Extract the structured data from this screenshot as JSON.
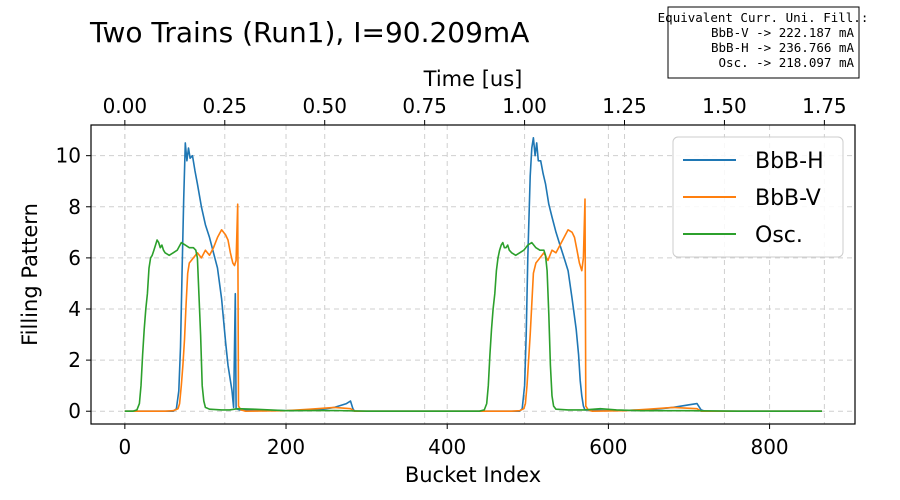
{
  "chart_data": {
    "type": "line",
    "title": "Two Trains (Run1), I=90.209mA",
    "xlabel": "Bucket Index",
    "ylabel": "Filling Pattern",
    "x2label": "Time [us]",
    "xlim": [
      -42,
      906
    ],
    "ylim": [
      -0.5,
      11.2
    ],
    "xticks": [
      0,
      200,
      400,
      600,
      800
    ],
    "yticks": [
      0,
      2,
      4,
      6,
      8,
      10
    ],
    "x2ticks": [
      "0.00",
      "0.25",
      "0.50",
      "0.75",
      "1.00",
      "1.25",
      "1.50",
      "1.75"
    ],
    "x2_bucket_per_us": 496,
    "grid": true,
    "legend_position": "top-right",
    "annotation": {
      "lines": [
        "Equivalent Curr. Uni. Fill.:",
        "BbB-V   -> 222.187 mA",
        "BbB-H   -> 236.766 mA",
        "Osc.    -> 218.097 mA"
      ]
    },
    "series": [
      {
        "name": "BbB-H",
        "color": "#1f77b4",
        "points": [
          [
            0,
            0
          ],
          [
            60,
            0
          ],
          [
            64,
            0.1
          ],
          [
            67,
            0.8
          ],
          [
            69,
            2.5
          ],
          [
            71,
            5.5
          ],
          [
            73,
            8.3
          ],
          [
            75,
            10.5
          ],
          [
            77,
            9.8
          ],
          [
            79,
            10.3
          ],
          [
            81,
            9.9
          ],
          [
            84,
            10.0
          ],
          [
            87,
            9.4
          ],
          [
            90,
            8.9
          ],
          [
            95,
            8.0
          ],
          [
            100,
            7.3
          ],
          [
            105,
            6.8
          ],
          [
            110,
            6.2
          ],
          [
            115,
            5.6
          ],
          [
            120,
            4.4
          ],
          [
            125,
            2.7
          ],
          [
            128,
            1.8
          ],
          [
            131,
            1.2
          ],
          [
            133,
            0.8
          ],
          [
            135,
            0.15
          ],
          [
            137,
            4.6
          ],
          [
            138,
            0.1
          ],
          [
            142,
            0.05
          ],
          [
            150,
            0.05
          ],
          [
            200,
            0.02
          ],
          [
            240,
            0.05
          ],
          [
            260,
            0.15
          ],
          [
            275,
            0.3
          ],
          [
            280,
            0.4
          ],
          [
            283,
            0.1
          ],
          [
            285,
            0
          ],
          [
            440,
            0
          ],
          [
            490,
            0
          ],
          [
            493,
            0.1
          ],
          [
            496,
            1.0
          ],
          [
            498,
            3.0
          ],
          [
            500,
            6.0
          ],
          [
            503,
            9.2
          ],
          [
            505,
            10.3
          ],
          [
            507,
            10.7
          ],
          [
            509,
            10.0
          ],
          [
            511,
            10.5
          ],
          [
            513,
            9.8
          ],
          [
            516,
            9.8
          ],
          [
            519,
            9.3
          ],
          [
            522,
            8.9
          ],
          [
            526,
            8.1
          ],
          [
            530,
            7.6
          ],
          [
            535,
            7.0
          ],
          [
            540,
            6.5
          ],
          [
            545,
            6.0
          ],
          [
            550,
            5.5
          ],
          [
            555,
            4.4
          ],
          [
            560,
            3.2
          ],
          [
            563,
            2.2
          ],
          [
            565,
            1.2
          ],
          [
            567,
            0.6
          ],
          [
            569,
            0.2
          ],
          [
            571,
            0.05
          ],
          [
            600,
            0.02
          ],
          [
            650,
            0.05
          ],
          [
            680,
            0.15
          ],
          [
            700,
            0.25
          ],
          [
            710,
            0.3
          ],
          [
            715,
            0.05
          ],
          [
            720,
            0
          ],
          [
            865,
            0
          ]
        ]
      },
      {
        "name": "BbB-V",
        "color": "#ff7f0e",
        "points": [
          [
            0,
            0
          ],
          [
            50,
            0
          ],
          [
            60,
            0.02
          ],
          [
            66,
            0.1
          ],
          [
            68,
            0.3
          ],
          [
            70,
            1.0
          ],
          [
            72,
            1.8
          ],
          [
            74,
            2.8
          ],
          [
            76,
            4.2
          ],
          [
            78,
            5.4
          ],
          [
            80,
            5.8
          ],
          [
            85,
            6.0
          ],
          [
            90,
            6.2
          ],
          [
            95,
            6.0
          ],
          [
            100,
            6.3
          ],
          [
            105,
            6.1
          ],
          [
            110,
            6.4
          ],
          [
            115,
            6.8
          ],
          [
            120,
            7.1
          ],
          [
            125,
            6.9
          ],
          [
            128,
            6.7
          ],
          [
            131,
            6.2
          ],
          [
            134,
            5.8
          ],
          [
            136,
            5.7
          ],
          [
            138,
            5.9
          ],
          [
            140,
            8.1
          ],
          [
            141,
            0.2
          ],
          [
            144,
            0.05
          ],
          [
            150,
            0
          ],
          [
            200,
            0.02
          ],
          [
            230,
            0.08
          ],
          [
            260,
            0.15
          ],
          [
            280,
            0.1
          ],
          [
            285,
            0
          ],
          [
            480,
            0
          ],
          [
            490,
            0.02
          ],
          [
            495,
            0.1
          ],
          [
            497,
            0.3
          ],
          [
            499,
            1.0
          ],
          [
            501,
            2.0
          ],
          [
            503,
            3.0
          ],
          [
            505,
            4.2
          ],
          [
            507,
            5.4
          ],
          [
            510,
            5.8
          ],
          [
            515,
            6.0
          ],
          [
            520,
            6.2
          ],
          [
            525,
            5.9
          ],
          [
            530,
            6.3
          ],
          [
            535,
            6.2
          ],
          [
            540,
            6.5
          ],
          [
            545,
            6.8
          ],
          [
            550,
            7.1
          ],
          [
            555,
            7.0
          ],
          [
            558,
            6.8
          ],
          [
            561,
            6.3
          ],
          [
            564,
            5.8
          ],
          [
            567,
            5.5
          ],
          [
            569,
            6.0
          ],
          [
            571,
            8.3
          ],
          [
            572,
            0.2
          ],
          [
            575,
            0.05
          ],
          [
            580,
            0
          ],
          [
            620,
            0.02
          ],
          [
            650,
            0.08
          ],
          [
            680,
            0.15
          ],
          [
            710,
            0.1
          ],
          [
            715,
            0
          ],
          [
            865,
            0
          ]
        ]
      },
      {
        "name": "Osc.",
        "color": "#2ca02c",
        "points": [
          [
            0,
            0
          ],
          [
            10,
            0
          ],
          [
            15,
            0.05
          ],
          [
            18,
            0.3
          ],
          [
            20,
            1.0
          ],
          [
            22,
            2.2
          ],
          [
            24,
            3.2
          ],
          [
            26,
            4.0
          ],
          [
            28,
            4.6
          ],
          [
            30,
            5.6
          ],
          [
            32,
            6.0
          ],
          [
            34,
            6.1
          ],
          [
            36,
            6.3
          ],
          [
            38,
            6.5
          ],
          [
            40,
            6.7
          ],
          [
            42,
            6.6
          ],
          [
            44,
            6.4
          ],
          [
            46,
            6.5
          ],
          [
            48,
            6.3
          ],
          [
            50,
            6.2
          ],
          [
            55,
            6.1
          ],
          [
            60,
            6.2
          ],
          [
            65,
            6.3
          ],
          [
            70,
            6.6
          ],
          [
            75,
            6.5
          ],
          [
            80,
            6.4
          ],
          [
            85,
            6.4
          ],
          [
            88,
            6.3
          ],
          [
            90,
            6.0
          ],
          [
            92,
            4.5
          ],
          [
            94,
            3.0
          ],
          [
            96,
            1.0
          ],
          [
            98,
            0.4
          ],
          [
            100,
            0.15
          ],
          [
            105,
            0.08
          ],
          [
            120,
            0.05
          ],
          [
            130,
            0.05
          ],
          [
            140,
            0.1
          ],
          [
            160,
            0.08
          ],
          [
            180,
            0.05
          ],
          [
            200,
            0.02
          ],
          [
            260,
            0.03
          ],
          [
            300,
            0
          ],
          [
            430,
            0
          ],
          [
            440,
            0
          ],
          [
            446,
            0.05
          ],
          [
            449,
            0.3
          ],
          [
            451,
            1.0
          ],
          [
            453,
            2.2
          ],
          [
            455,
            3.2
          ],
          [
            457,
            4.0
          ],
          [
            459,
            4.6
          ],
          [
            461,
            5.5
          ],
          [
            463,
            6.0
          ],
          [
            465,
            6.3
          ],
          [
            467,
            6.5
          ],
          [
            469,
            6.6
          ],
          [
            471,
            6.4
          ],
          [
            473,
            6.4
          ],
          [
            475,
            6.5
          ],
          [
            477,
            6.3
          ],
          [
            480,
            6.2
          ],
          [
            485,
            6.1
          ],
          [
            490,
            6.2
          ],
          [
            495,
            6.3
          ],
          [
            500,
            6.5
          ],
          [
            505,
            6.6
          ],
          [
            510,
            6.4
          ],
          [
            515,
            6.3
          ],
          [
            520,
            6.3
          ],
          [
            522,
            6.1
          ],
          [
            524,
            5.5
          ],
          [
            526,
            3.8
          ],
          [
            528,
            1.8
          ],
          [
            530,
            0.6
          ],
          [
            532,
            0.2
          ],
          [
            535,
            0.08
          ],
          [
            550,
            0.05
          ],
          [
            570,
            0.05
          ],
          [
            590,
            0.1
          ],
          [
            610,
            0.05
          ],
          [
            640,
            0.02
          ],
          [
            700,
            0.02
          ],
          [
            760,
            0
          ],
          [
            865,
            0
          ]
        ]
      }
    ]
  }
}
